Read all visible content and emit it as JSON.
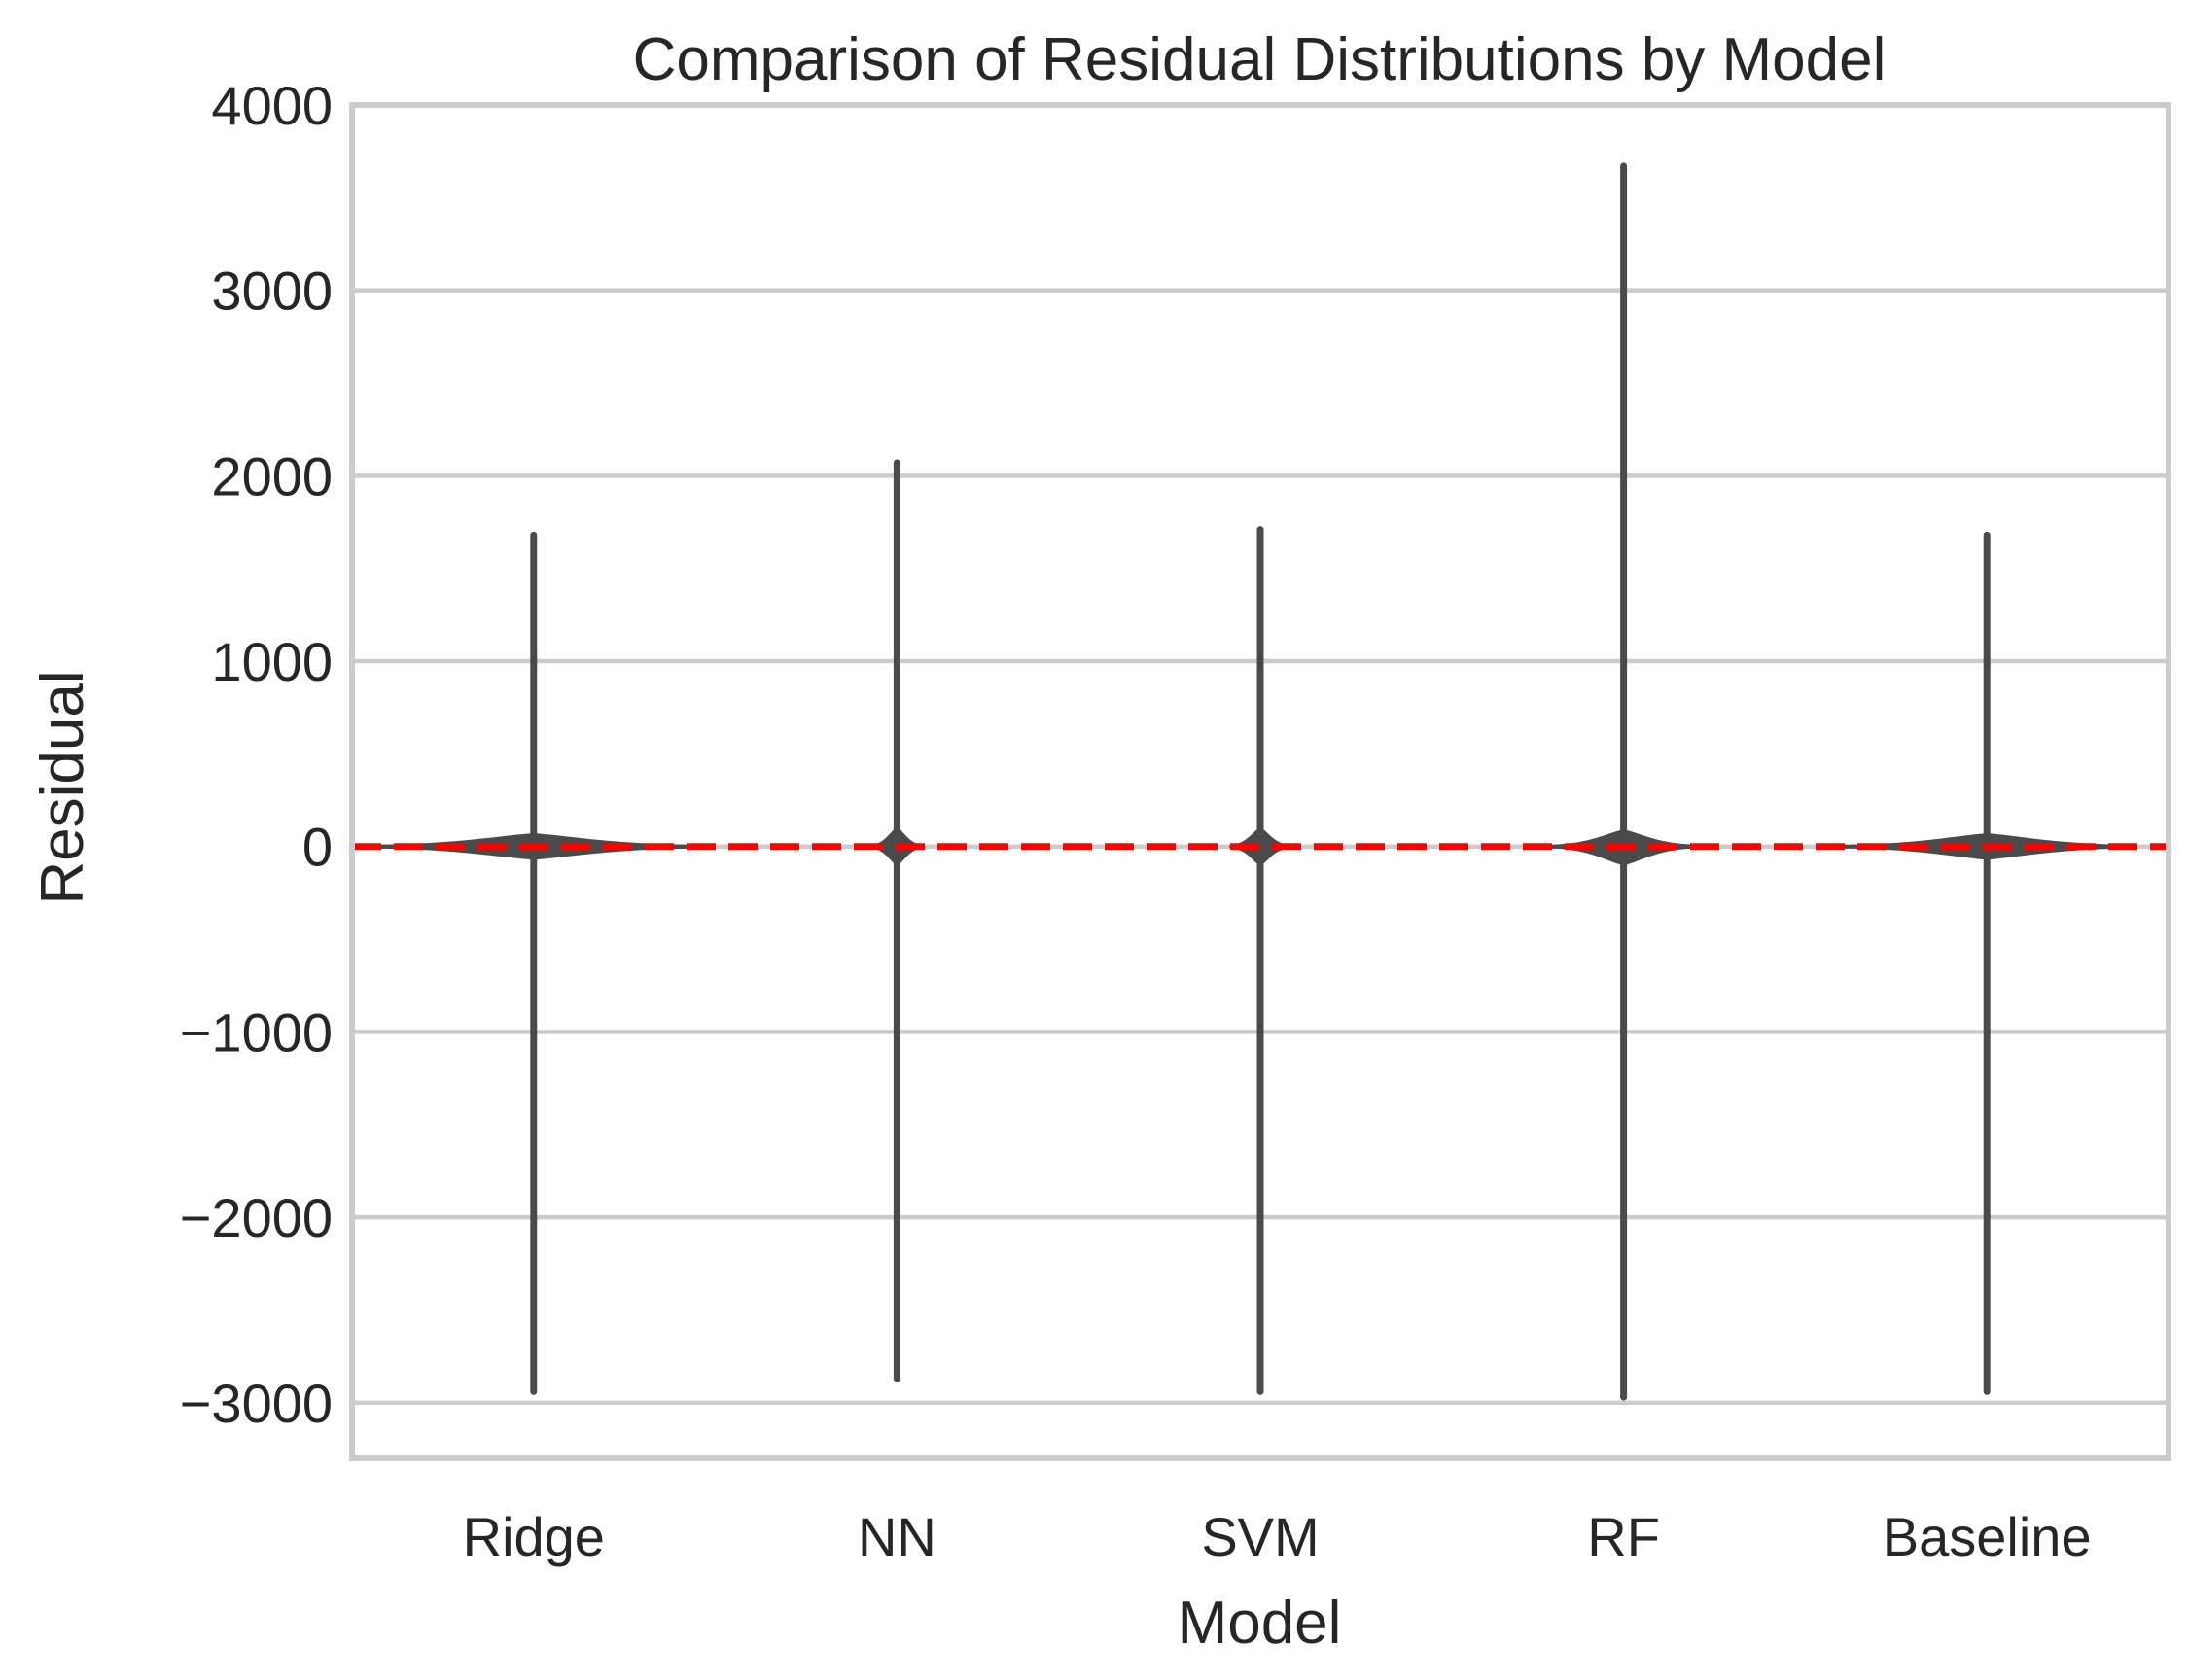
{
  "chart_data": {
    "type": "violin",
    "title": "Comparison of Residual Distributions by Model",
    "xlabel": "Model",
    "ylabel": "Residual",
    "ylim": [
      -3300,
      4000
    ],
    "yticks": [
      4000,
      3000,
      2000,
      1000,
      0,
      -1000,
      -2000,
      -3000
    ],
    "ytick_labels": [
      "4000",
      "3000",
      "2000",
      "1000",
      "0",
      "−1000",
      "−2000",
      "−3000"
    ],
    "grid": "horizontal",
    "categories": [
      "Ridge",
      "NN",
      "SVM",
      "RF",
      "Baseline"
    ],
    "distributions": [
      {
        "category": "Ridge",
        "min": -2940,
        "max": 1680,
        "center": 0,
        "spread_up": 60,
        "spread_down": 60,
        "width": 0.9
      },
      {
        "category": "NN",
        "min": -2870,
        "max": 2070,
        "center": 0,
        "spread_up": 90,
        "spread_down": 90,
        "width": 0.14
      },
      {
        "category": "SVM",
        "min": -2940,
        "max": 1710,
        "center": 0,
        "spread_up": 90,
        "spread_down": 90,
        "width": 0.16
      },
      {
        "category": "RF",
        "min": -2970,
        "max": 3670,
        "center": 0,
        "spread_up": 80,
        "spread_down": 90,
        "width": 0.4
      },
      {
        "category": "Baseline",
        "min": -2940,
        "max": 1680,
        "center": 0,
        "spread_up": 60,
        "spread_down": 60,
        "width": 0.8
      }
    ],
    "reference_line": {
      "y": 0,
      "color": "#ff0000",
      "style": "dashed"
    },
    "violin_color": "#4a4a4a"
  }
}
